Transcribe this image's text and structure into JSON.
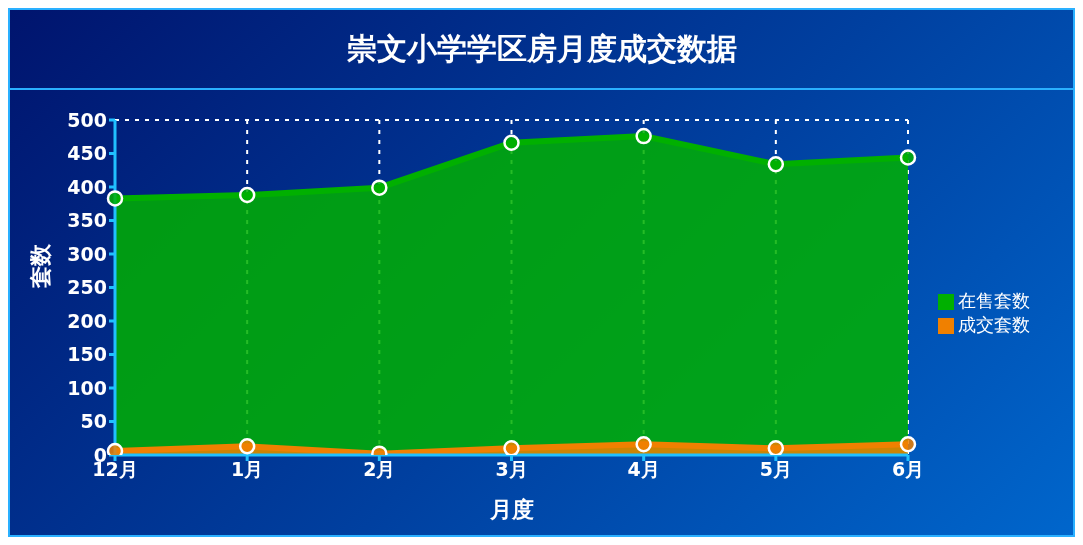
{
  "chart_data": {
    "type": "area",
    "title": "崇文小学学区房月度成交数据",
    "xlabel": "月度",
    "ylabel": "套数",
    "categories": [
      "12月",
      "1月",
      "2月",
      "3月",
      "4月",
      "5月",
      "6月"
    ],
    "series": [
      {
        "name": "在售套数",
        "color": "#00b000",
        "values": [
          383,
          388,
          399,
          466,
          476,
          434,
          444
        ]
      },
      {
        "name": "成交套数",
        "color": "#f08000",
        "values": [
          6,
          13,
          2,
          10,
          16,
          10,
          16
        ]
      }
    ],
    "ylim": [
      0,
      500
    ],
    "yticks": [
      0,
      50,
      100,
      150,
      200,
      250,
      300,
      350,
      400,
      450,
      500
    ],
    "grid": true,
    "legend": "right",
    "marker": "circle"
  }
}
